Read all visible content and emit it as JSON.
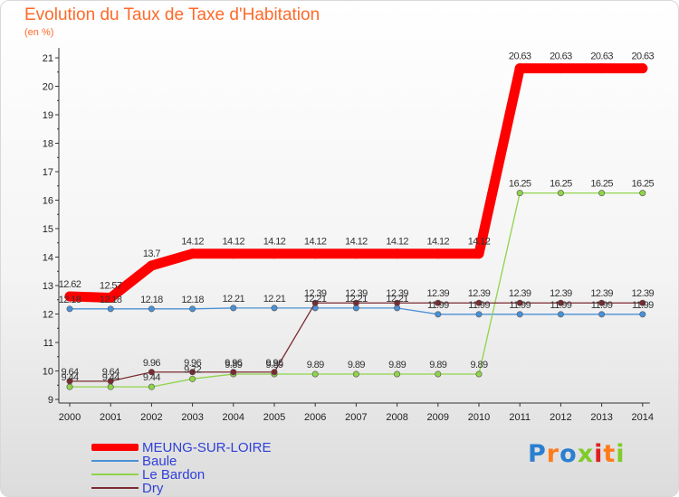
{
  "chart_data": {
    "type": "line",
    "title": "Evolution du Taux de Taxe d'Habitation",
    "unit_label": "(en %)",
    "x": [
      "2000",
      "2001",
      "2002",
      "2003",
      "2004",
      "2005",
      "2006",
      "2007",
      "2008",
      "2009",
      "2010",
      "2011",
      "2012",
      "2013",
      "2014"
    ],
    "ylim": [
      9,
      21
    ],
    "yticks": [
      "9",
      "10",
      "11",
      "12",
      "13",
      "14",
      "15",
      "16",
      "17",
      "18",
      "19",
      "20",
      "21"
    ],
    "grid": false,
    "legend_position": "bottom-left",
    "series": [
      {
        "name": "MEUNG-SUR-LOIRE",
        "color": "#ff0000",
        "main": true,
        "values": [
          12.62,
          12.57,
          13.7,
          14.12,
          14.12,
          14.12,
          14.12,
          14.12,
          14.12,
          14.12,
          14.12,
          20.63,
          20.63,
          20.63,
          20.63
        ],
        "labels": [
          "12.62",
          "12.57",
          "13.7",
          "14.12",
          "14.12",
          "14.12",
          "14.12",
          "14.12",
          "14.12",
          "14.12",
          "14.12",
          "20.63",
          "20.63",
          "20.63",
          "20.63"
        ]
      },
      {
        "name": "Baule",
        "color": "#4a90d6",
        "main": false,
        "values": [
          12.18,
          12.18,
          12.18,
          12.18,
          12.21,
          12.21,
          12.21,
          12.21,
          12.21,
          11.99,
          11.99,
          11.99,
          11.99,
          11.99,
          11.99
        ],
        "labels": [
          "12.18",
          "12.18",
          "12.18",
          "12.18",
          "12.21",
          "12.21",
          "12.21",
          "12.21",
          "12.21",
          "11.99",
          "11.99",
          "11.99",
          "11.99",
          "11.99",
          "11.99"
        ]
      },
      {
        "name": "Le Bardon",
        "color": "#8fd44a",
        "main": false,
        "values": [
          9.44,
          9.44,
          9.44,
          9.72,
          9.89,
          9.89,
          9.89,
          9.89,
          9.89,
          9.89,
          9.89,
          16.25,
          16.25,
          16.25,
          16.25
        ],
        "labels": [
          "9.44",
          "9.44",
          "9.44",
          "9.72",
          "9.89",
          "9.89",
          "9.89",
          "9.89",
          "9.89",
          "9.89",
          "9.89",
          "16.25",
          "16.25",
          "16.25",
          "16.25"
        ]
      },
      {
        "name": "Dry",
        "color": "#7a2a30",
        "main": false,
        "values": [
          9.64,
          9.64,
          9.96,
          9.96,
          9.96,
          9.96,
          12.39,
          12.39,
          12.39,
          12.39,
          12.39,
          12.39,
          12.39,
          12.39,
          12.39
        ],
        "labels": [
          "9.64",
          "9.64",
          "9.96",
          "9.96",
          "9.96",
          "9.96",
          "12.39",
          "12.39",
          "12.39",
          "12.39",
          "12.39",
          "12.39",
          "12.39",
          "12.39",
          "12.39"
        ]
      }
    ]
  },
  "logo": {
    "text": "Proxiti"
  }
}
